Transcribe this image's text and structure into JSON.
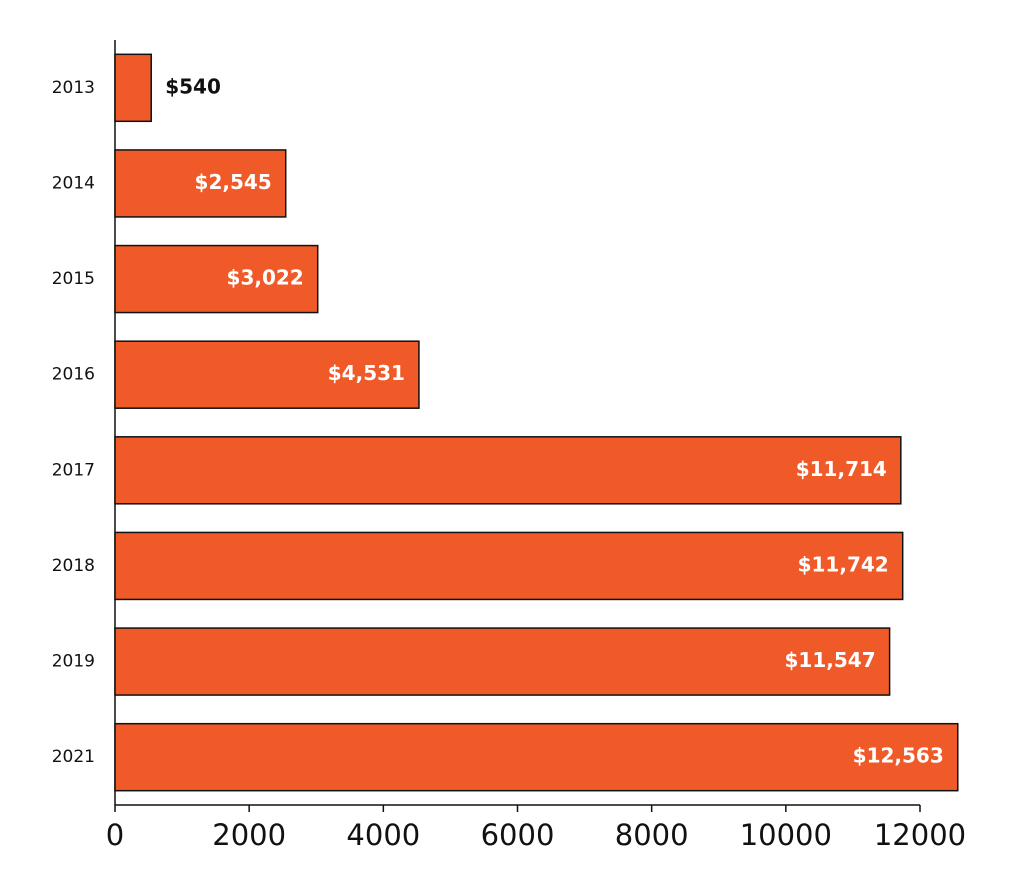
{
  "chart_data": {
    "type": "bar",
    "orientation": "horizontal",
    "categories": [
      "2013",
      "2014",
      "2015",
      "2016",
      "2017",
      "2018",
      "2019",
      "2021"
    ],
    "values": [
      540,
      2545,
      3022,
      4531,
      11714,
      11742,
      11547,
      12563
    ],
    "value_labels": [
      "$540",
      "$2,545",
      "$3,022",
      "$4,531",
      "$11,714",
      "$11,742",
      "$11,547",
      "$12,563"
    ],
    "color": "#f05a28",
    "xlim": [
      0,
      12000
    ],
    "xticks": [
      0,
      2000,
      4000,
      6000,
      8000,
      10000,
      12000
    ],
    "grid": false
  }
}
